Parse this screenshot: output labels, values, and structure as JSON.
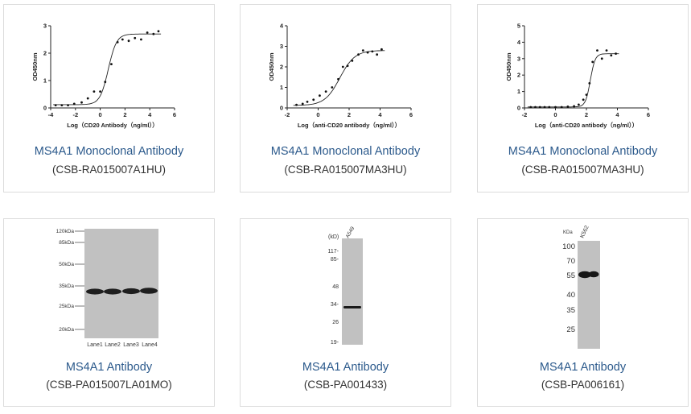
{
  "products": [
    {
      "name": "MS4A1 Monoclonal Antibody",
      "code": "(CSB-RA015007A1HU)"
    },
    {
      "name": "MS4A1 Monoclonal Antibody",
      "code": "(CSB-RA015007MA3HU)"
    },
    {
      "name": "MS4A1 Monoclonal Antibody",
      "code": "(CSB-RA015007MA3HU)"
    },
    {
      "name": "MS4A1 Antibody",
      "code": "(CSB-PA015007LA01MO)"
    },
    {
      "name": "MS4A1 Antibody",
      "code": "(CSB-PA001433)"
    },
    {
      "name": "MS4A1 Antibody",
      "code": "(CSB-PA006161)"
    }
  ],
  "chart_data": [
    {
      "type": "scatter",
      "xlabel": "Log（CD20 Antibody（ng/ml））",
      "ylabel": "OD450nm",
      "xlim": [
        -4,
        6
      ],
      "ylim": [
        0,
        3
      ],
      "xticks": [
        "-4",
        "-2",
        "0",
        "2",
        "4",
        "6"
      ],
      "yticks": [
        "0",
        "1",
        "2",
        "3"
      ],
      "points": [
        [
          -3.6,
          0.1
        ],
        [
          -3.1,
          0.1
        ],
        [
          -2.6,
          0.1
        ],
        [
          -2.1,
          0.15
        ],
        [
          -1.5,
          0.2
        ],
        [
          -1.0,
          0.35
        ],
        [
          -0.5,
          0.6
        ],
        [
          0.0,
          0.6
        ],
        [
          0.4,
          0.95
        ],
        [
          0.9,
          1.6
        ],
        [
          1.4,
          2.4
        ],
        [
          1.8,
          2.5
        ],
        [
          2.3,
          2.45
        ],
        [
          2.8,
          2.55
        ],
        [
          3.3,
          2.5
        ],
        [
          3.8,
          2.75
        ],
        [
          4.3,
          2.7
        ],
        [
          4.7,
          2.8
        ]
      ],
      "curve": {
        "bottom": 0.12,
        "top": 2.7,
        "ec50": 0.65,
        "slope": 1.3
      }
    },
    {
      "type": "scatter",
      "xlabel": "Log（anti-CD20 antibody（ng/ml））",
      "ylabel": "OD450nm",
      "xlim": [
        -2,
        6
      ],
      "ylim": [
        0,
        4
      ],
      "xticks": [
        "-2",
        "0",
        "2",
        "4",
        "6"
      ],
      "yticks": [
        "0",
        "1",
        "2",
        "3",
        "4"
      ],
      "points": [
        [
          -1.4,
          0.15
        ],
        [
          -1.0,
          0.2
        ],
        [
          -0.7,
          0.3
        ],
        [
          -0.3,
          0.4
        ],
        [
          0.1,
          0.6
        ],
        [
          0.5,
          0.8
        ],
        [
          0.9,
          1.0
        ],
        [
          1.3,
          1.4
        ],
        [
          1.6,
          2.0
        ],
        [
          1.9,
          2.05
        ],
        [
          2.2,
          2.3
        ],
        [
          2.6,
          2.6
        ],
        [
          2.9,
          2.8
        ],
        [
          3.2,
          2.7
        ],
        [
          3.5,
          2.75
        ],
        [
          3.8,
          2.6
        ],
        [
          4.1,
          2.85
        ]
      ],
      "curve": {
        "bottom": 0.12,
        "top": 2.8,
        "ec50": 1.4,
        "slope": 0.9
      }
    },
    {
      "type": "scatter",
      "xlabel": "Log（anti-CD20 antibody（ng/ml））",
      "ylabel": "OD450nm",
      "xlim": [
        -2,
        6
      ],
      "ylim": [
        0,
        5
      ],
      "xticks": [
        "-2",
        "0",
        "2",
        "4",
        "6"
      ],
      "yticks": [
        "0",
        "1",
        "2",
        "3",
        "4",
        "5"
      ],
      "points": [
        [
          -1.6,
          0.05
        ],
        [
          -1.3,
          0.05
        ],
        [
          -1.0,
          0.05
        ],
        [
          -0.7,
          0.05
        ],
        [
          -0.4,
          0.05
        ],
        [
          0.0,
          0.05
        ],
        [
          0.4,
          0.05
        ],
        [
          0.8,
          0.08
        ],
        [
          1.2,
          0.1
        ],
        [
          1.5,
          0.2
        ],
        [
          1.8,
          0.5
        ],
        [
          2.0,
          0.8
        ],
        [
          2.2,
          1.5
        ],
        [
          2.4,
          2.8
        ],
        [
          2.7,
          3.5
        ],
        [
          3.0,
          3.0
        ],
        [
          3.3,
          3.5
        ],
        [
          3.6,
          3.2
        ],
        [
          3.9,
          3.3
        ]
      ],
      "curve": {
        "bottom": 0.06,
        "top": 3.3,
        "ec50": 2.25,
        "slope": 2.8
      }
    }
  ],
  "blots": {
    "blot1": {
      "markers": [
        "120kDa",
        "85kDa",
        "50kDa",
        "35kDa",
        "25kDa",
        "20kDa"
      ],
      "lanes": [
        "Lane1",
        "Lane2",
        "Lane3",
        "Lane4"
      ]
    },
    "blot2": {
      "unit": "(kD)",
      "sample": "A549",
      "markers": [
        "117-",
        "85-",
        "48",
        "34-",
        "26",
        "19-"
      ]
    },
    "blot3": {
      "unit": "KDa",
      "sample": "K562",
      "markers": [
        "100",
        "70",
        "55",
        "40",
        "35",
        "25"
      ]
    }
  },
  "colors": {
    "link": "#2c5a8c",
    "text": "#333333",
    "border": "#dcdcdc",
    "membrane": "#c1c1c1",
    "band": "#1a1a1a"
  }
}
